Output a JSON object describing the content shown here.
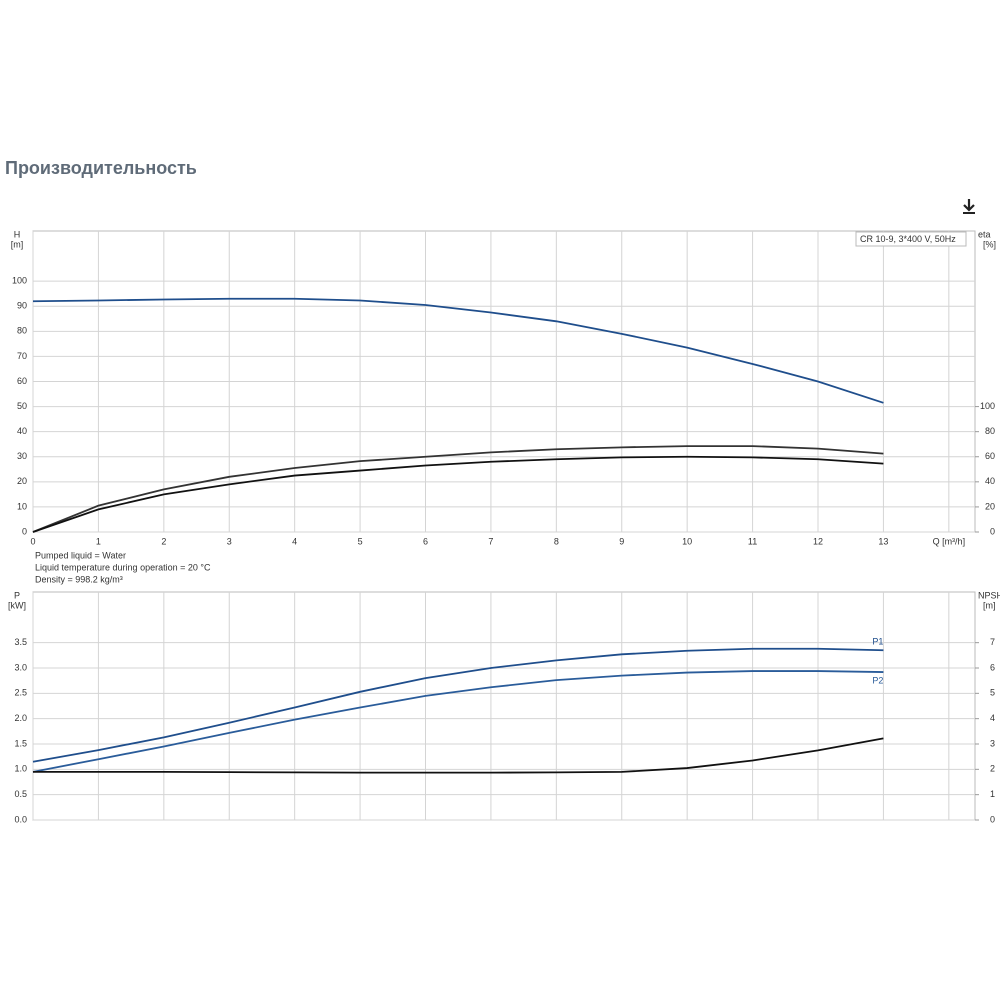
{
  "page_title": "Производительность",
  "chart_data": [
    {
      "type": "line",
      "subtitle": "CR 10-9, 3*400 V, 50Hz",
      "ylabel": "H",
      "ylabel_unit": "[m]",
      "y2label": "eta",
      "y2label_unit": "[%]",
      "x": [
        0,
        1,
        2,
        3,
        4,
        5,
        6,
        7,
        8,
        9,
        10,
        11,
        12,
        13
      ],
      "xlim": [
        0,
        14.4
      ],
      "xticks": [
        0,
        1,
        2,
        3,
        4,
        5,
        6,
        7,
        8,
        9,
        10,
        11,
        12,
        13,
        {
          "value": 14,
          "label": "Q [m³/h]"
        }
      ],
      "ylim": [
        0,
        120
      ],
      "yticks": [
        0,
        10,
        20,
        30,
        40,
        50,
        60,
        70,
        80,
        90,
        100
      ],
      "y2lim": [
        0,
        240
      ],
      "y2ticks": [
        0,
        20,
        40,
        60,
        80,
        100
      ],
      "grid": true,
      "series": [
        {
          "color": "#1f4e8c",
          "values": [
            92,
            92.3,
            92.7,
            93,
            93,
            92.3,
            90.5,
            87.5,
            84,
            79,
            73.5,
            67,
            60,
            51.5
          ]
        },
        {
          "color": "#333333",
          "axis": "y2",
          "values": [
            0,
            21,
            34,
            44,
            51,
            56.5,
            60,
            63.5,
            66,
            67.5,
            68.5,
            68.5,
            66.5,
            62.5
          ]
        },
        {
          "color": "#111111",
          "axis": "y2",
          "values": [
            0,
            18,
            30,
            38,
            45,
            49,
            53,
            56,
            58,
            59.5,
            60,
            59.5,
            58,
            54.5
          ]
        }
      ],
      "annotations": [
        "Pumped liquid = Water",
        "Liquid temperature during operation = 20 °C",
        "Density = 998.2 kg/m³"
      ]
    },
    {
      "type": "line",
      "ylabel": "P",
      "ylabel_unit": "[kW]",
      "y2label": "NPSH",
      "y2label_unit": "[m]",
      "x": [
        0,
        1,
        2,
        3,
        4,
        5,
        6,
        7,
        8,
        9,
        10,
        11,
        12,
        13
      ],
      "xlim": [
        0,
        14.4
      ],
      "xticks": [
        0,
        1,
        2,
        3,
        4,
        5,
        6,
        7,
        8,
        9,
        10,
        11,
        12,
        13,
        14
      ],
      "show_xtick_labels": false,
      "ylim": [
        0,
        4.5
      ],
      "yticks": [
        {
          "value": 0,
          "label": "0.0"
        },
        0.5,
        {
          "value": 1,
          "label": "1.0"
        },
        1.5,
        {
          "value": 2,
          "label": "2.0"
        },
        2.5,
        {
          "value": 3,
          "label": "3.0"
        },
        3.5
      ],
      "y2lim": [
        0,
        9
      ],
      "y2ticks": [
        0,
        1,
        2,
        3,
        4,
        5,
        6,
        7
      ],
      "grid": true,
      "series": [
        {
          "name": "P1",
          "color": "#1f4e8c",
          "values": [
            1.15,
            1.38,
            1.63,
            1.92,
            2.22,
            2.53,
            2.8,
            3.0,
            3.15,
            3.27,
            3.34,
            3.38,
            3.38,
            3.35
          ]
        },
        {
          "name": "P2",
          "color": "#2a5c9a",
          "values": [
            0.95,
            1.2,
            1.45,
            1.72,
            1.98,
            2.22,
            2.45,
            2.62,
            2.76,
            2.85,
            2.91,
            2.94,
            2.94,
            2.92
          ]
        },
        {
          "color": "#111111",
          "axis": "y2",
          "values": [
            1.9,
            1.9,
            1.9,
            1.89,
            1.88,
            1.87,
            1.87,
            1.87,
            1.88,
            1.9,
            2.05,
            2.35,
            2.75,
            3.22
          ]
        }
      ]
    }
  ]
}
